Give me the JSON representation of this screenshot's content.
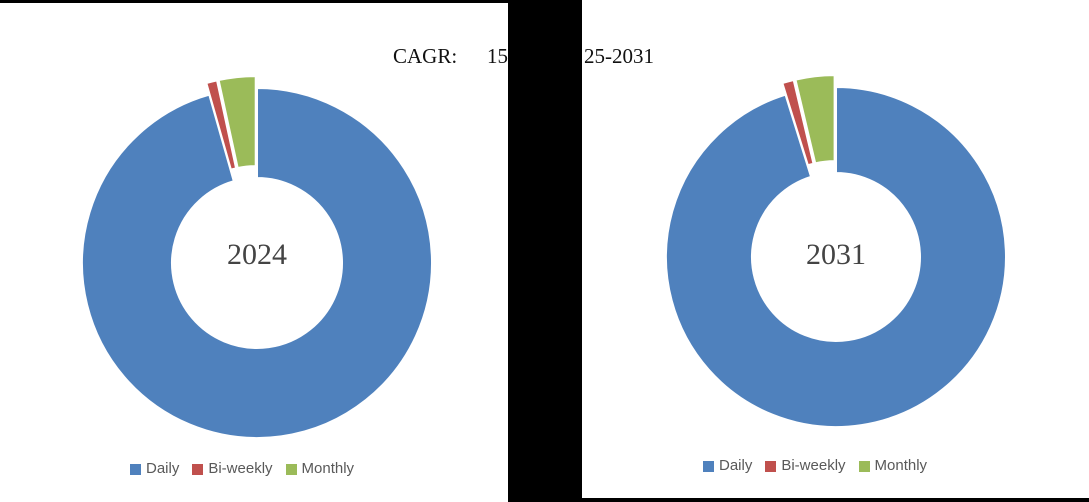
{
  "title": {
    "label": "CAGR:",
    "value_fragment": "15",
    "period_fragment": "25-2031"
  },
  "chart_data": [
    {
      "type": "donut",
      "center_label": "2024",
      "categories": [
        "Daily",
        "Bi-weekly",
        "Monthly"
      ],
      "values": [
        95.6,
        1.0,
        3.4
      ],
      "colors": [
        "#4F81BD",
        "#C0504D",
        "#9BBB59"
      ],
      "legend_position": "bottom",
      "exploded_slices": [
        "Bi-weekly",
        "Monthly"
      ]
    },
    {
      "type": "donut",
      "center_label": "2031",
      "categories": [
        "Daily",
        "Bi-weekly",
        "Monthly"
      ],
      "values": [
        95.2,
        1.1,
        3.7
      ],
      "colors": [
        "#4F81BD",
        "#C0504D",
        "#9BBB59"
      ],
      "legend_position": "bottom",
      "exploded_slices": [
        "Bi-weekly",
        "Monthly"
      ]
    }
  ]
}
